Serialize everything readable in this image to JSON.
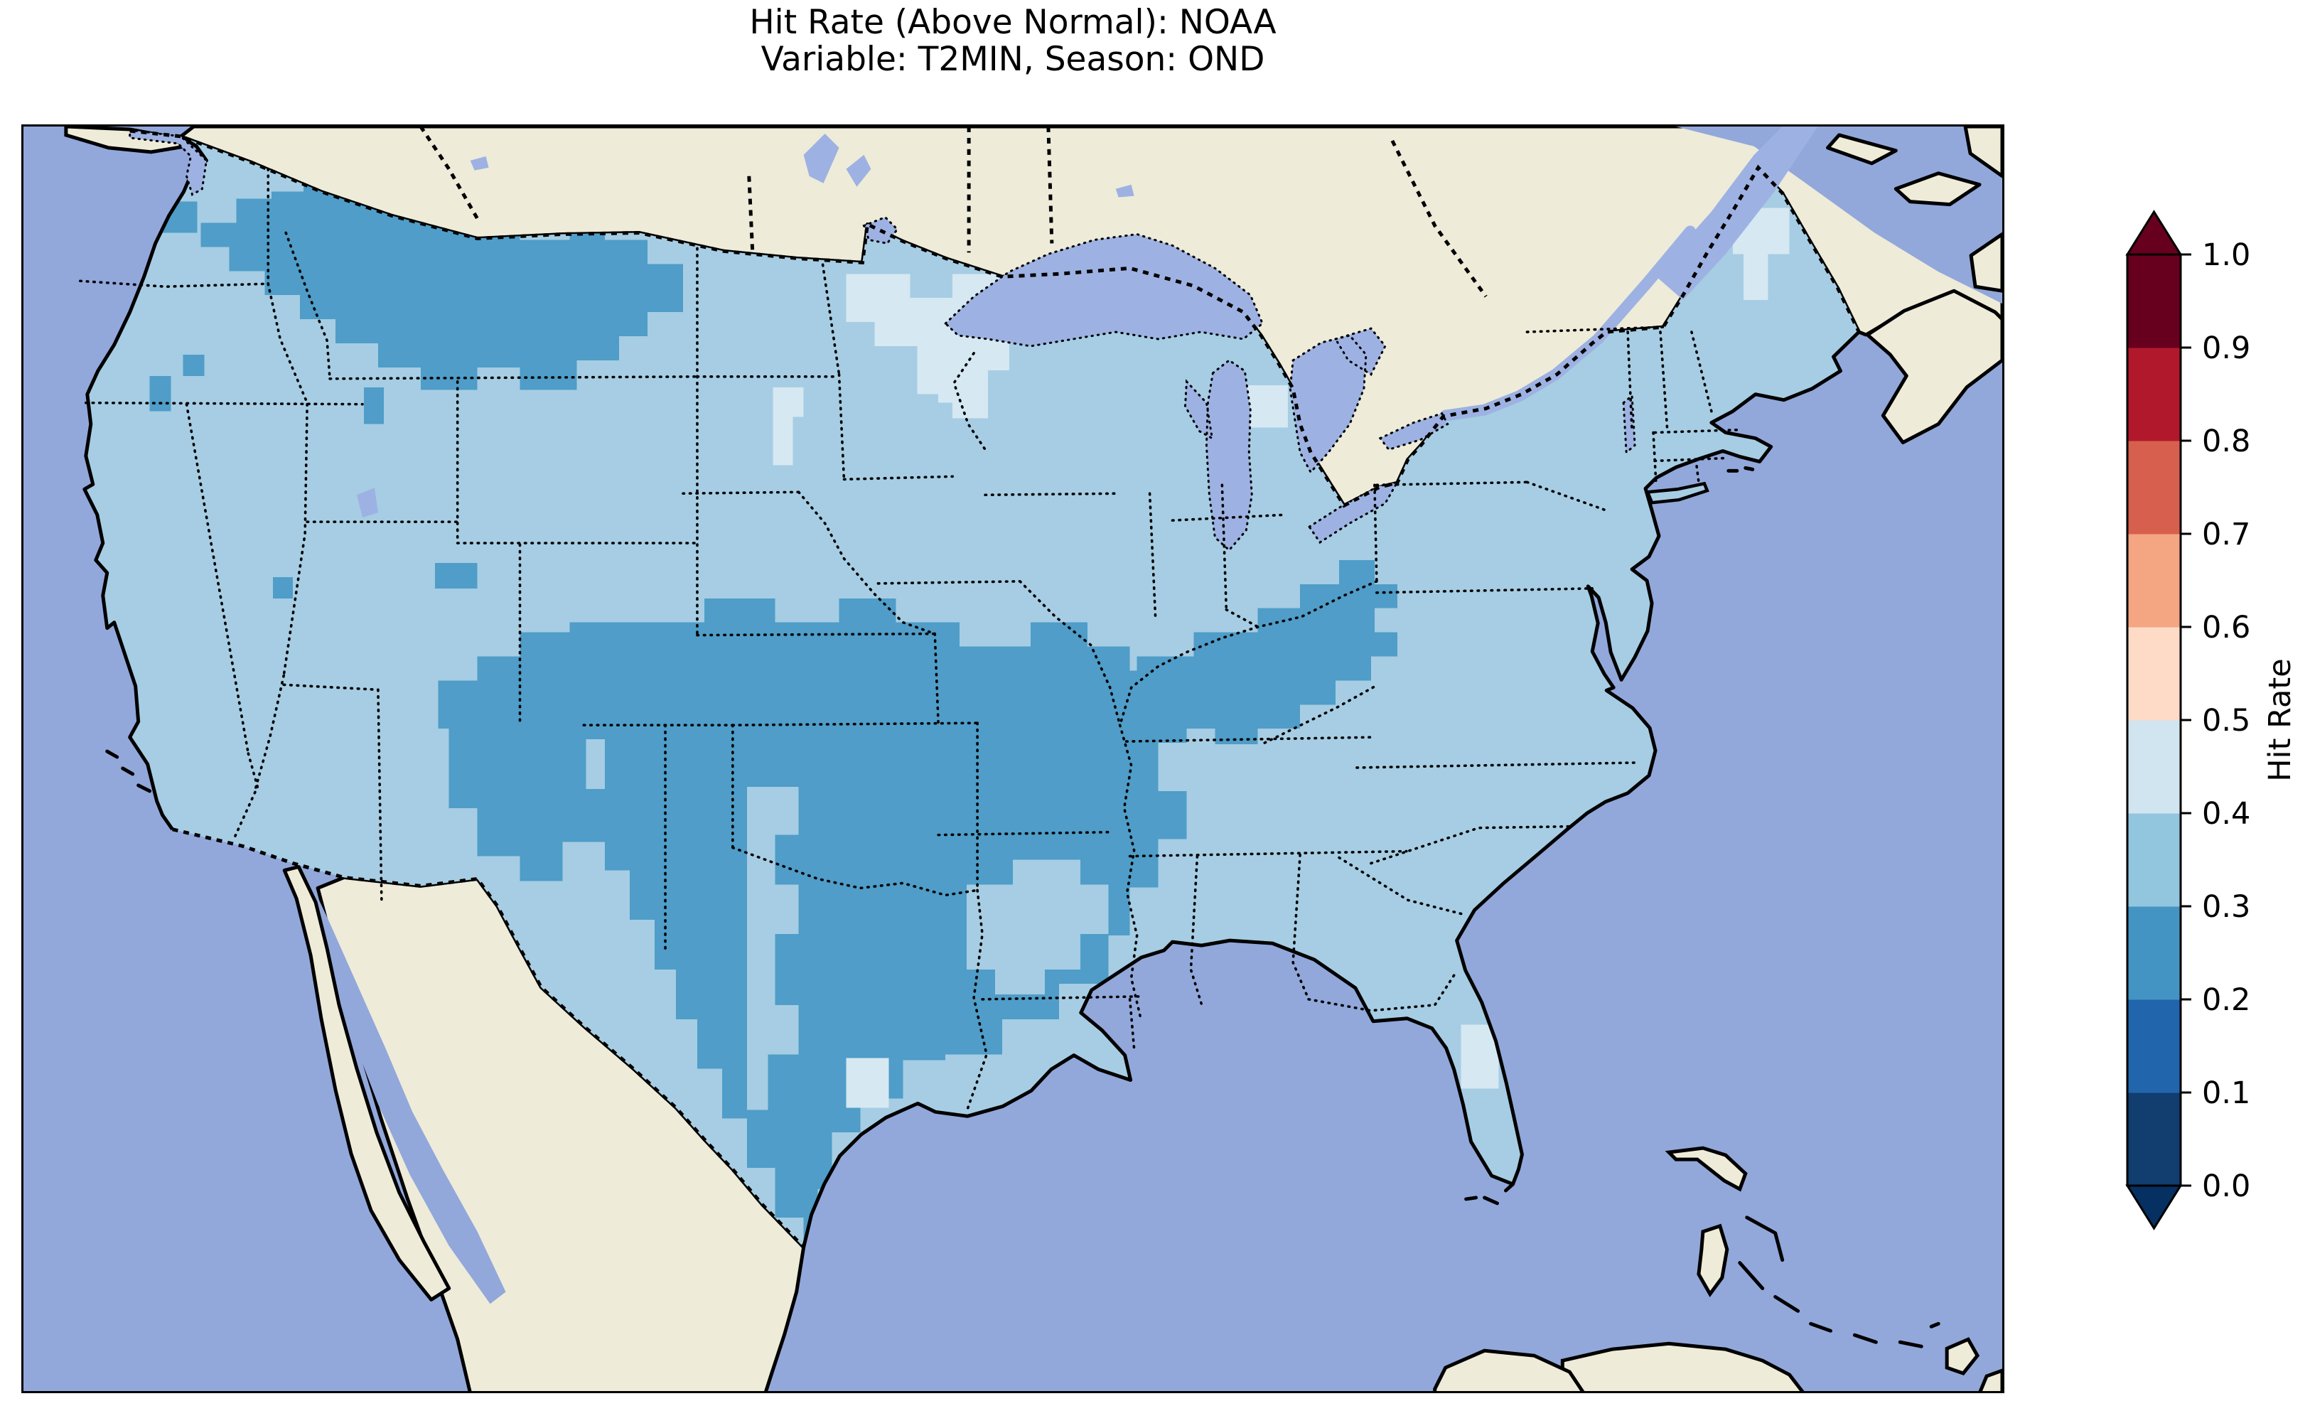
{
  "title": {
    "line1": "Hit Rate (Above Normal): NOAA",
    "line2": "Variable: T2MIN, Season: OND"
  },
  "colorbar": {
    "label": "Hit Rate",
    "orientation": "vertical",
    "ticks": [
      "0.0",
      "0.1",
      "0.2",
      "0.3",
      "0.4",
      "0.5",
      "0.6",
      "0.7",
      "0.8",
      "0.9",
      "1.0"
    ],
    "segments": [
      {
        "range": "0.0-0.1",
        "color": "#123d6f"
      },
      {
        "range": "0.1-0.2",
        "color": "#2166ac"
      },
      {
        "range": "0.2-0.3",
        "color": "#4393c3"
      },
      {
        "range": "0.3-0.4",
        "color": "#92c5de"
      },
      {
        "range": "0.4-0.5",
        "color": "#d1e5f0"
      },
      {
        "range": "0.5-0.6",
        "color": "#fddbc7"
      },
      {
        "range": "0.6-0.7",
        "color": "#f4a582"
      },
      {
        "range": "0.7-0.8",
        "color": "#d6604d"
      },
      {
        "range": "0.8-0.9",
        "color": "#b2182b"
      },
      {
        "range": "0.9-1.0",
        "color": "#67001f"
      }
    ],
    "arrow_under_color": "#053061",
    "arrow_over_color": "#67001f"
  },
  "map": {
    "palette": {
      "ocean": "#92a8db",
      "land": "#eeebd9",
      "lake": "#9db2e2",
      "hit_light": "#a6cde3",
      "hit_medium": "#4f9dc8",
      "hit_pale": "#d6e8f2",
      "outline": "#000000"
    }
  },
  "chart_data": {
    "type": "heatmap",
    "title": "Hit Rate (Above Normal): NOAA",
    "subtitle": "Variable: T2MIN, Season: OND",
    "colorbar_label": "Hit Rate",
    "value_range": [
      0.0,
      1.0
    ],
    "tick_step": 0.1,
    "legend_position": "right",
    "observed_value_range_on_map": [
      0.2,
      0.5
    ],
    "regions": [
      {
        "area": "most of contiguous United States",
        "hit_rate_bin": "0.3-0.4"
      },
      {
        "area": "eastern Washington, Idaho panhandle, western & northern Montana",
        "hit_rate_bin": "0.2-0.3"
      },
      {
        "area": "Puget Sound area cells (Washington)",
        "hit_rate_bin": "0.2-0.3"
      },
      {
        "area": "eastern Colorado / western & central Kansas into Missouri",
        "hit_rate_bin": "0.2-0.3"
      },
      {
        "area": "Oklahoma, central & southern Texas down to the Gulf coast",
        "hit_rate_bin": "0.2-0.3"
      },
      {
        "area": "Four Corners lobe (W Colorado / NE Arizona / NW New Mexico)",
        "hit_rate_bin": "0.2-0.3"
      },
      {
        "area": "lower Mississippi valley (E Arkansas, Louisiana, W Mississippi)",
        "hit_rate_bin": "0.2-0.3"
      },
      {
        "area": "Kentucky / Tennessee / West Virginia (Ohio Valley)",
        "hit_rate_bin": "0.2-0.3"
      },
      {
        "area": "scattered single cells (Nevada, Utah, Iowa)",
        "hit_rate_bin": "0.2-0.3"
      },
      {
        "area": "Texas panhandle strip and Ozarks (Arkansas/SE Oklahoma) notch",
        "hit_rate_bin": "0.3-0.4"
      },
      {
        "area": "northern Minnesota",
        "hit_rate_bin": "0.4-0.5"
      },
      {
        "area": "central South Dakota patch",
        "hit_rate_bin": "0.4-0.5"
      },
      {
        "area": "upper & northern Michigan cells",
        "hit_rate_bin": "0.4-0.5"
      },
      {
        "area": "northern Maine",
        "hit_rate_bin": "0.4-0.5"
      },
      {
        "area": "east-central Florida",
        "hit_rate_bin": "0.4-0.5"
      }
    ]
  }
}
